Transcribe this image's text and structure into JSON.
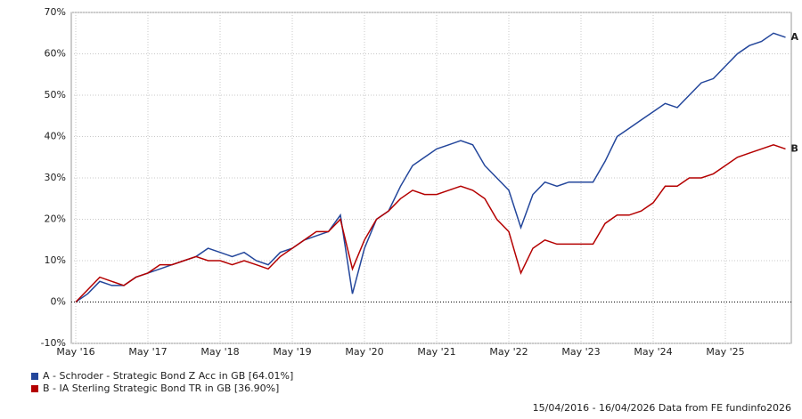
{
  "chart_data": {
    "type": "line",
    "categories": [
      "May '16",
      null,
      null,
      null,
      null,
      null,
      "May '17",
      null,
      null,
      null,
      null,
      null,
      "May '18",
      null,
      null,
      null,
      null,
      null,
      "May '19",
      null,
      null,
      null,
      null,
      null,
      "May '20",
      null,
      null,
      null,
      null,
      null,
      "May '21",
      null,
      null,
      null,
      null,
      null,
      "May '22",
      null,
      null,
      null,
      null,
      null,
      "May '23",
      null,
      null,
      null,
      null,
      null,
      "May '24",
      null,
      null,
      null,
      null,
      null,
      "May '25",
      null,
      null,
      null,
      null,
      null
    ],
    "series": [
      {
        "name": "A - Schroder - Strategic Bond Z Acc in GB [64.01%]",
        "label": "A",
        "color": "#23469b",
        "values": [
          0,
          2,
          5,
          4,
          4,
          6,
          7,
          8,
          9,
          10,
          11,
          13,
          12,
          11,
          12,
          10,
          9,
          12,
          13,
          15,
          16,
          17,
          21,
          2,
          13,
          20,
          22,
          28,
          33,
          35,
          37,
          38,
          39,
          38,
          33,
          30,
          27,
          18,
          26,
          29,
          28,
          29,
          29,
          29,
          34,
          40,
          42,
          44,
          46,
          48,
          47,
          50,
          53,
          54,
          57,
          60,
          62,
          63,
          65,
          64
        ]
      },
      {
        "name": "B - IA Sterling Strategic Bond TR in GB [36.90%]",
        "label": "B",
        "color": "#b40000",
        "values": [
          0,
          3,
          6,
          5,
          4,
          6,
          7,
          9,
          9,
          10,
          11,
          10,
          10,
          9,
          10,
          9,
          8,
          11,
          13,
          15,
          17,
          17,
          20,
          8,
          15,
          20,
          22,
          25,
          27,
          26,
          26,
          27,
          28,
          27,
          25,
          20,
          17,
          7,
          13,
          15,
          14,
          14,
          14,
          14,
          19,
          21,
          21,
          22,
          24,
          28,
          28,
          30,
          30,
          31,
          33,
          35,
          36,
          37,
          38,
          37
        ]
      }
    ],
    "ylim": [
      -10,
      70
    ],
    "yticks": [
      {
        "value": -10,
        "label": "-10%"
      },
      {
        "value": 0,
        "label": "0%"
      },
      {
        "value": 10,
        "label": "10%"
      },
      {
        "value": 20,
        "label": "20%"
      },
      {
        "value": 30,
        "label": "30%"
      },
      {
        "value": 40,
        "label": "40%"
      },
      {
        "value": 50,
        "label": "50%"
      },
      {
        "value": 60,
        "label": "60%"
      },
      {
        "value": 70,
        "label": "70%"
      }
    ],
    "grid": true,
    "footer": "15/04/2016 - 16/04/2026 Data from FE fundinfo2026"
  }
}
